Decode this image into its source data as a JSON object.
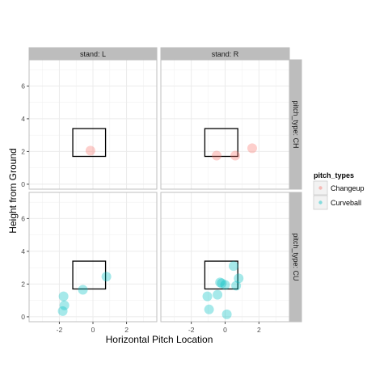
{
  "chart_data": {
    "type": "scatter",
    "title": "",
    "xlabel": "Horizontal Pitch Location",
    "ylabel": "Height from Ground",
    "xlim": [
      -3.8,
      3.8
    ],
    "ylim": [
      -0.3,
      7.6
    ],
    "x_ticks": [
      -2,
      0,
      2
    ],
    "y_ticks": [
      0,
      2,
      4,
      6
    ],
    "grid": true,
    "legend": {
      "title": "pitch_types",
      "position": "right",
      "entries": [
        {
          "label": "Changeup",
          "color": "#F8766D"
        },
        {
          "label": "Curveball",
          "color": "#00BFC4"
        }
      ]
    },
    "facets": {
      "columns": [
        "stand: L",
        "stand: R"
      ],
      "rows": [
        "pitch_type: CH",
        "pitch_type: CU"
      ]
    },
    "strike_zone": {
      "x": [
        -1.2,
        0.75
      ],
      "y": [
        1.7,
        3.4
      ]
    },
    "panels": [
      {
        "col": 0,
        "row": 0,
        "series": "Changeup",
        "points": [
          [
            -0.15,
            2.05
          ]
        ]
      },
      {
        "col": 1,
        "row": 0,
        "series": "Changeup",
        "points": [
          [
            -0.5,
            1.75
          ],
          [
            0.6,
            1.75
          ],
          [
            1.6,
            2.2
          ]
        ]
      },
      {
        "col": 0,
        "row": 1,
        "series": "Curveball",
        "points": [
          [
            -1.75,
            1.25
          ],
          [
            -1.7,
            0.7
          ],
          [
            -1.8,
            0.35
          ],
          [
            -0.6,
            1.65
          ],
          [
            0.8,
            2.45
          ]
        ]
      },
      {
        "col": 1,
        "row": 1,
        "series": "Curveball",
        "points": [
          [
            -1.05,
            1.25
          ],
          [
            -0.95,
            0.45
          ],
          [
            -0.45,
            1.35
          ],
          [
            -0.3,
            2.1
          ],
          [
            -0.2,
            2.05
          ],
          [
            0.0,
            1.95
          ],
          [
            0.1,
            0.15
          ],
          [
            0.5,
            3.1
          ],
          [
            0.65,
            1.9
          ],
          [
            0.8,
            2.35
          ]
        ]
      }
    ]
  }
}
